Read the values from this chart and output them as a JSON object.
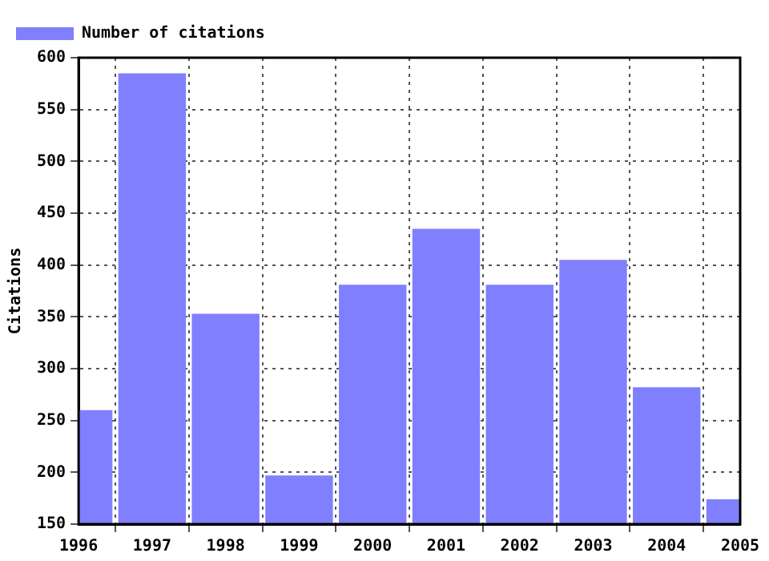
{
  "chart_data": {
    "type": "bar",
    "x": [
      1996,
      1997,
      1998,
      1999,
      2000,
      2001,
      2002,
      2003,
      2004,
      2005
    ],
    "series": [
      {
        "name": "Number of citations",
        "color": "#8080ff",
        "values": [
          260,
          585,
          353,
          197,
          381,
          435,
          381,
          405,
          282,
          174
        ]
      }
    ],
    "xlim": [
      1996,
      2005
    ],
    "xticks": [
      1996,
      1997,
      1998,
      1999,
      2000,
      2001,
      2002,
      2003,
      2004,
      2005
    ],
    "ylim": [
      150,
      600
    ],
    "yticks": [
      150,
      200,
      250,
      300,
      350,
      400,
      450,
      500,
      550,
      600
    ],
    "ylabel": "Citations",
    "grid": true,
    "legend": "top left"
  }
}
